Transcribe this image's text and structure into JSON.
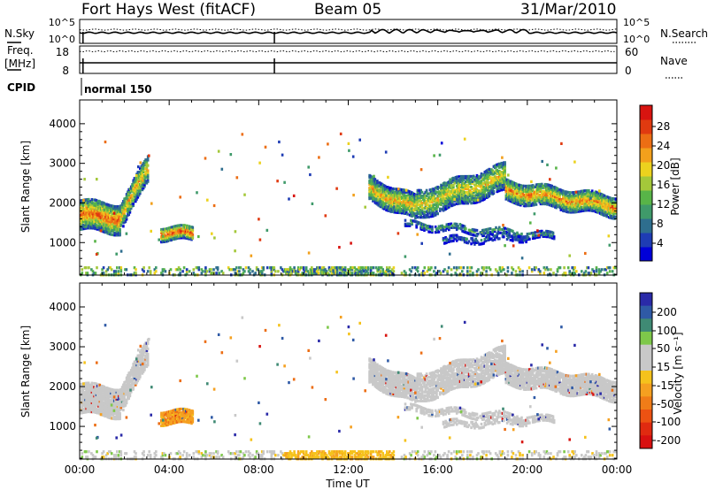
{
  "header": {
    "title": "Fort Hays West (fitACF)",
    "beam": "Beam 05",
    "date": "31/Mar/2010"
  },
  "strip_labels": {
    "nsky": "N.Sky",
    "nsky_ticks": [
      "10^5",
      "10^0"
    ],
    "nsearch": "N.Search",
    "nsearch_ticks": [
      "10^5",
      "10^0"
    ],
    "freq_line1": "Freq.",
    "freq_line2": "[MHz]",
    "freq_ticks": [
      "18",
      "8"
    ],
    "nave": "Nave",
    "nave_ticks": [
      "60",
      "0"
    ],
    "cpid": "CPID",
    "cpid_value": "normal 150"
  },
  "colorbars": {
    "power": {
      "label": "Power [dB]",
      "ticks": [
        "28",
        "24",
        "20",
        "16",
        "12",
        "8",
        "4"
      ],
      "colors": [
        "#0000d8",
        "#1e3cb4",
        "#2e6e8e",
        "#3f9a6a",
        "#58b448",
        "#a4c83a",
        "#ecd21e",
        "#f2a01c",
        "#ec6e14",
        "#e03a10",
        "#d81410"
      ]
    },
    "velocity": {
      "label": "Velocity [m s⁻¹]",
      "ticks": [
        "200",
        "100",
        "50",
        "15",
        "-15",
        "-50",
        "-100",
        "-200"
      ],
      "colors": [
        "#2a2aa8",
        "#2f5aa6",
        "#3f8a74",
        "#7ec84a",
        "#c8c8c8",
        "#c8c8c8",
        "#f5c21c",
        "#f5a020",
        "#f07c18",
        "#ec5212",
        "#e02a10",
        "#d81010"
      ]
    }
  },
  "chart_data": [
    {
      "type": "heatmap",
      "name": "Power",
      "xlabel": "Time UT",
      "ylabel": "Slant Range [km]",
      "x_ticks": [
        "00:00",
        "04:00",
        "08:00",
        "12:00",
        "16:00",
        "20:00",
        "00:00"
      ],
      "y_ticks": [
        "1000",
        "2000",
        "3000",
        "4000"
      ],
      "xlim_hours": [
        0,
        24
      ],
      "ylim_km": [
        180,
        4600
      ],
      "colorbar": "Power [dB]",
      "crange": [
        0,
        30
      ]
    },
    {
      "type": "heatmap",
      "name": "Velocity",
      "xlabel": "Time UT",
      "ylabel": "Slant Range [km]",
      "x_ticks": [
        "00:00",
        "04:00",
        "08:00",
        "12:00",
        "16:00",
        "20:00",
        "00:00"
      ],
      "y_ticks": [
        "1000",
        "2000",
        "3000",
        "4000"
      ],
      "xlim_hours": [
        0,
        24
      ],
      "ylim_km": [
        180,
        4600
      ],
      "colorbar": "Velocity [m s⁻¹]",
      "crange": [
        -250,
        250
      ]
    }
  ],
  "xaxis": {
    "label": "Time UT",
    "ticks": [
      "00:00",
      "04:00",
      "08:00",
      "12:00",
      "16:00",
      "20:00",
      "00:00"
    ]
  }
}
